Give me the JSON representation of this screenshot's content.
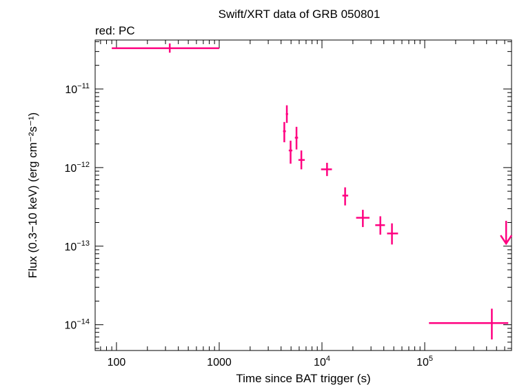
{
  "chart_data": {
    "type": "scatter",
    "title": "Swift/XRT data of GRB 050801",
    "subtitle": "red: PC",
    "xlabel": "Time since BAT trigger (s)",
    "ylabel": "Flux (0.3−10 keV) (erg cm⁻²s⁻¹)",
    "xscale": "log",
    "yscale": "log",
    "xlim": [
      62,
      700000
    ],
    "ylim": [
      4.7e-15,
      4.2e-11
    ],
    "grid": false,
    "x_ticks": [
      {
        "value": 100,
        "label": "100"
      },
      {
        "value": 1000,
        "label": "1000"
      },
      {
        "value": 10000,
        "base": "10",
        "exp": "4"
      },
      {
        "value": 100000,
        "base": "10",
        "exp": "5"
      }
    ],
    "y_ticks": [
      {
        "value": 1e-14,
        "base": "10",
        "exp": "−14"
      },
      {
        "value": 1e-13,
        "base": "10",
        "exp": "−13"
      },
      {
        "value": 1e-12,
        "base": "10",
        "exp": "−12"
      },
      {
        "value": 1e-11,
        "base": "10",
        "exp": "−11"
      }
    ],
    "series": [
      {
        "name": "PC",
        "color": "#ff0080",
        "points": [
          {
            "x": 330,
            "xlo": 90,
            "xhi": 1000,
            "y": 3.3e-11,
            "ylo": 2.9e-11,
            "yhi": 3.8e-11
          },
          {
            "x": 4300,
            "xlo": 4180,
            "xhi": 4450,
            "y": 2.9e-12,
            "ylo": 2.1e-12,
            "yhi": 3.8e-12
          },
          {
            "x": 4550,
            "xlo": 4450,
            "xhi": 4680,
            "y": 4.8e-12,
            "ylo": 3.7e-12,
            "yhi": 6.2e-12
          },
          {
            "x": 4950,
            "xlo": 4750,
            "xhi": 5150,
            "y": 1.65e-12,
            "ylo": 1.12e-12,
            "yhi": 2.2e-12
          },
          {
            "x": 5650,
            "xlo": 5450,
            "xhi": 5850,
            "y": 2.4e-12,
            "ylo": 1.7e-12,
            "yhi": 3.3e-12
          },
          {
            "x": 6300,
            "xlo": 5900,
            "xhi": 6800,
            "y": 1.25e-12,
            "ylo": 9.5e-13,
            "yhi": 1.65e-12
          },
          {
            "x": 11200,
            "xlo": 9800,
            "xhi": 12500,
            "y": 9.5e-13,
            "ylo": 7.8e-13,
            "yhi": 1.15e-12
          },
          {
            "x": 16800,
            "xlo": 15800,
            "xhi": 18000,
            "y": 4.4e-13,
            "ylo": 3.3e-13,
            "yhi": 5.6e-13
          },
          {
            "x": 25000,
            "xlo": 21500,
            "xhi": 29000,
            "y": 2.3e-13,
            "ylo": 1.75e-13,
            "yhi": 2.9e-13
          },
          {
            "x": 37000,
            "xlo": 33000,
            "xhi": 41000,
            "y": 1.85e-13,
            "ylo": 1.4e-13,
            "yhi": 2.4e-13
          },
          {
            "x": 48000,
            "xlo": 43000,
            "xhi": 55000,
            "y": 1.45e-13,
            "ylo": 1.05e-13,
            "yhi": 1.95e-13
          },
          {
            "x": 450000,
            "xlo": 110000,
            "xhi": 650000,
            "y": 1.05e-14,
            "ylo": 6.5e-15,
            "yhi": 1.6e-14
          }
        ],
        "upper_limits": [
          {
            "x": 620000,
            "y": 2.1e-13
          }
        ]
      }
    ]
  }
}
